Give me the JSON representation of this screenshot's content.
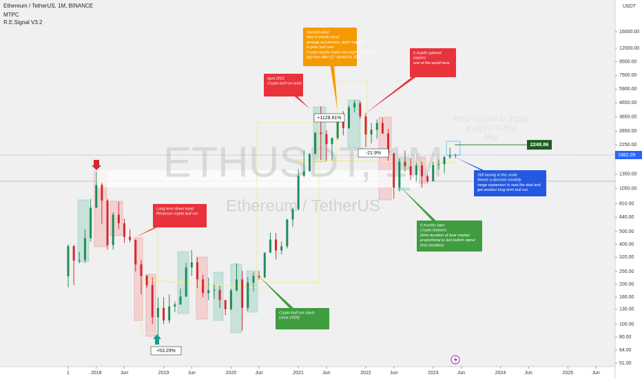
{
  "header": {
    "symbol": "Ethereum / TetherUS, 1M, BINANCE",
    "indicator1": "MTPC",
    "indicator2": "R.E.Signal V3.2",
    "currency": "USDT"
  },
  "watermark": {
    "ticker": "ETHUSDT, 1M",
    "name": "Ethereum / TetherUS"
  },
  "chart_data": {
    "type": "candlestick",
    "log_scale": true,
    "grid": false,
    "up_color": "#1e8c5a",
    "down_color": "#d6282e",
    "x": [
      "2017-08",
      "2017-09",
      "2017-10",
      "2017-11",
      "2017-12",
      "2018-01",
      "2018-02",
      "2018-03",
      "2018-04",
      "2018-05",
      "2018-06",
      "2018-07",
      "2018-08",
      "2018-09",
      "2018-10",
      "2018-11",
      "2018-12",
      "2019-01",
      "2019-02",
      "2019-03",
      "2019-04",
      "2019-05",
      "2019-06",
      "2019-07",
      "2019-08",
      "2019-09",
      "2019-10",
      "2019-11",
      "2019-12",
      "2020-01",
      "2020-02",
      "2020-03",
      "2020-04",
      "2020-05",
      "2020-06",
      "2020-07",
      "2020-08",
      "2020-09",
      "2020-10",
      "2020-11",
      "2020-12",
      "2021-01",
      "2021-02",
      "2021-03",
      "2021-04",
      "2021-05",
      "2021-06",
      "2021-07",
      "2021-08",
      "2021-09",
      "2021-10",
      "2021-11",
      "2021-12",
      "2022-01",
      "2022-02",
      "2022-03",
      "2022-04",
      "2022-05",
      "2022-06",
      "2022-07",
      "2022-08",
      "2022-09",
      "2022-10",
      "2022-11",
      "2022-12",
      "2023-01",
      "2023-02",
      "2023-03",
      "2023-04",
      "2023-05"
    ],
    "ohlc": [
      [
        230,
        400,
        190,
        388
      ],
      [
        388,
        395,
        197,
        302
      ],
      [
        302,
        350,
        287,
        305
      ],
      [
        305,
        520,
        290,
        445
      ],
      [
        445,
        880,
        420,
        755
      ],
      [
        755,
        1420,
        750,
        1120
      ],
      [
        1120,
        1160,
        570,
        855
      ],
      [
        855,
        880,
        365,
        395
      ],
      [
        395,
        700,
        365,
        670
      ],
      [
        670,
        835,
        520,
        577
      ],
      [
        577,
        625,
        410,
        455
      ],
      [
        455,
        520,
        415,
        433
      ],
      [
        433,
        436,
        250,
        283
      ],
      [
        283,
        305,
        168,
        232
      ],
      [
        232,
        235,
        187,
        197
      ],
      [
        197,
        226,
        100,
        113
      ],
      [
        113,
        159,
        82,
        133
      ],
      [
        133,
        160,
        100,
        107
      ],
      [
        107,
        168,
        102,
        136
      ],
      [
        136,
        148,
        123,
        141
      ],
      [
        141,
        186,
        140,
        162
      ],
      [
        162,
        290,
        160,
        268
      ],
      [
        268,
        362,
        230,
        293
      ],
      [
        293,
        320,
        188,
        218
      ],
      [
        218,
        236,
        160,
        172
      ],
      [
        172,
        224,
        152,
        180
      ],
      [
        180,
        199,
        155,
        182
      ],
      [
        182,
        195,
        132,
        152
      ],
      [
        152,
        153,
        117,
        130
      ],
      [
        130,
        185,
        127,
        180
      ],
      [
        180,
        288,
        176,
        218
      ],
      [
        218,
        253,
        90,
        133
      ],
      [
        133,
        227,
        127,
        206
      ],
      [
        206,
        246,
        177,
        231
      ],
      [
        231,
        252,
        216,
        226
      ],
      [
        226,
        348,
        222,
        346
      ],
      [
        346,
        490,
        345,
        435
      ],
      [
        435,
        488,
        308,
        360
      ],
      [
        360,
        420,
        335,
        387
      ],
      [
        387,
        623,
        372,
        615
      ],
      [
        615,
        755,
        540,
        738
      ],
      [
        738,
        1475,
        715,
        1314
      ],
      [
        1314,
        2040,
        1282,
        1418
      ],
      [
        1418,
        1946,
        1440,
        1918
      ],
      [
        1918,
        2795,
        1930,
        2773
      ],
      [
        2773,
        4380,
        1730,
        2706
      ],
      [
        2706,
        2890,
        1700,
        2275
      ],
      [
        2275,
        2550,
        1720,
        2530
      ],
      [
        2530,
        3470,
        2450,
        3430
      ],
      [
        3430,
        4030,
        2650,
        3000
      ],
      [
        3000,
        4460,
        2970,
        4290
      ],
      [
        4290,
        4870,
        3950,
        4630
      ],
      [
        4630,
        4780,
        3520,
        3680
      ],
      [
        3680,
        3900,
        2160,
        2690
      ],
      [
        2690,
        3280,
        2300,
        2920
      ],
      [
        2920,
        3480,
        2500,
        3280
      ],
      [
        3280,
        3580,
        2790,
        2730
      ],
      [
        2730,
        2960,
        1700,
        1940
      ],
      [
        1940,
        1970,
        880,
        1070
      ],
      [
        1070,
        1780,
        1000,
        1680
      ],
      [
        1680,
        2030,
        1420,
        1550
      ],
      [
        1550,
        1790,
        1220,
        1330
      ],
      [
        1330,
        1660,
        1190,
        1570
      ],
      [
        1570,
        1680,
        1070,
        1300
      ],
      [
        1300,
        1350,
        1150,
        1195
      ],
      [
        1195,
        1680,
        1190,
        1585
      ],
      [
        1585,
        1745,
        1460,
        1605
      ],
      [
        1605,
        1850,
        1370,
        1820
      ],
      [
        1820,
        2140,
        1760,
        1870
      ],
      [
        1870,
        1930,
        1780,
        1882
      ]
    ],
    "ylim": [
      48,
      27700
    ],
    "yticks": [
      {
        "value": 16000,
        "label": "16000.00"
      },
      {
        "value": 12000,
        "label": "12000.00"
      },
      {
        "value": 9500,
        "label": "9500.00"
      },
      {
        "value": 7500,
        "label": "7500.00"
      },
      {
        "value": 5900,
        "label": "5900.00"
      },
      {
        "value": 4650,
        "label": "4650.00"
      },
      {
        "value": 3650,
        "label": "3650.00"
      },
      {
        "value": 2850,
        "label": "2850.00"
      },
      {
        "value": 2250,
        "label": "2250.00"
      },
      {
        "value": 1350,
        "label": "1350.00"
      },
      {
        "value": 1050,
        "label": "1050.00"
      },
      {
        "value": 810,
        "label": "810.00"
      },
      {
        "value": 640,
        "label": "640.00"
      },
      {
        "value": 500,
        "label": "500.00"
      },
      {
        "value": 400,
        "label": "400.00"
      },
      {
        "value": 320,
        "label": "320.00"
      },
      {
        "value": 250,
        "label": "250.00"
      },
      {
        "value": 200,
        "label": "200.00"
      },
      {
        "value": 160,
        "label": "160.00"
      },
      {
        "value": 130,
        "label": "130.00"
      },
      {
        "value": 100,
        "label": "100.00"
      },
      {
        "value": 80,
        "label": "80.00"
      },
      {
        "value": 64,
        "label": "64.00"
      },
      {
        "value": 51,
        "label": "51.00"
      }
    ],
    "xticks": [
      {
        "value": "2017-08",
        "label": "1"
      },
      {
        "value": "2018-01",
        "label": "2018"
      },
      {
        "value": "2018-06",
        "label": "Jun"
      },
      {
        "value": "2019-01",
        "label": "2019"
      },
      {
        "value": "2019-06",
        "label": "Jun"
      },
      {
        "value": "2020-01",
        "label": "2020"
      },
      {
        "value": "2020-06",
        "label": "Jun"
      },
      {
        "value": "2021-01",
        "label": "2021"
      },
      {
        "value": "2021-06",
        "label": "Jun"
      },
      {
        "value": "2022-01",
        "label": "2022"
      },
      {
        "value": "2022-06",
        "label": "Jun"
      },
      {
        "value": "2023-01",
        "label": "2023"
      },
      {
        "value": "2023-06",
        "label": "Jun"
      },
      {
        "value": "2024-01",
        "label": "2024"
      },
      {
        "value": "2024-06",
        "label": "Jun"
      },
      {
        "value": "2025-01",
        "label": "2025"
      },
      {
        "value": "2025-06",
        "label": "Jun"
      }
    ],
    "last_price": 1882.09,
    "trigger_price": 2248.86,
    "trigger_note": [
      "Price needed to trigger",
      "a signal during",
      "May"
    ],
    "percent_labels": [
      "+1128.91%",
      "-21.9%",
      "+53.29%"
    ],
    "annotations": [
      {
        "color": "#f59a00",
        "lines": [
          "Second wind",
          "New 6 month trend",
          "strange occurrence, didn't happen",
          "in prior bull runs",
          "Crypto barely made new highs and died",
          "big time after QT started in 2022"
        ]
      },
      {
        "color": "#e8323c",
        "lines": [
          "April 2021",
          "Crypto bull run ends"
        ]
      },
      {
        "color": "#e8323c",
        "lines": [
          "6 month uptrend",
          "expires",
          "end of the world here"
        ]
      },
      {
        "color": "#e8323c",
        "lines": [
          "Long term down trend",
          "Reverses crypto bull run"
        ]
      },
      {
        "color": "#3f9c3f",
        "lines": [
          "Crypto bull run starts",
          "(June 2020)"
        ]
      },
      {
        "color": "#3f9c3f",
        "lines": [
          "6 months later",
          "Crypto bottoms",
          "(time duration of bear market",
          "proportional to last bullish signal",
          "time duration)"
        ]
      },
      {
        "color": "#2458e0",
        "lines": [
          "Still basing in this scale",
          "Needs a decisive monthly",
          "range expansion to seal the deal and",
          "get another long term bull run"
        ]
      }
    ]
  }
}
